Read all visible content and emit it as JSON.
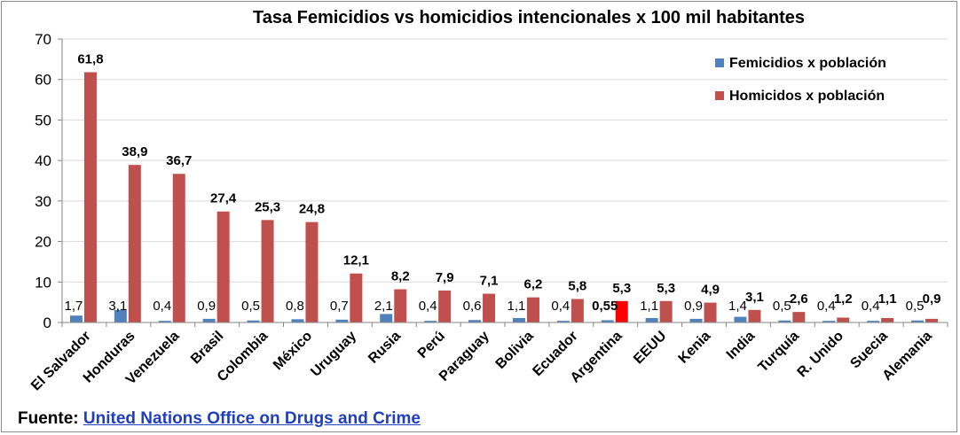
{
  "chart_data": {
    "type": "bar",
    "title": "Tasa Femicidios vs homicidios intencionales x 100 mil habitantes",
    "categories": [
      "El Salvador",
      "Honduras",
      "Venezuela",
      "Brasil",
      "Colombia",
      "México",
      "Uruguay",
      "Rusia",
      "Perú",
      "Paraguay",
      "Bolivia",
      "Ecuador",
      "Argentina",
      "EEUU",
      "Kenia",
      "India",
      "Turquía",
      "R. Unido",
      "Suecia",
      "Alemania"
    ],
    "series": [
      {
        "name": "Femicidios x población",
        "color": "#4f81bd",
        "values": [
          1.7,
          3.1,
          0.4,
          0.9,
          0.5,
          0.8,
          0.7,
          2.1,
          0.4,
          0.6,
          1.1,
          0.4,
          0.55,
          1.1,
          0.9,
          1.4,
          0.5,
          0.4,
          0.4,
          0.5
        ],
        "labels": [
          "1,7",
          "3,1",
          "0,4",
          "0,9",
          "0,5",
          "0,8",
          "0,7",
          "2,1",
          "0,4",
          "0,6",
          "1,1",
          "0,4",
          "0,55",
          "1,1",
          "0,9",
          "1,4",
          "0,5",
          "0,4",
          "0,4",
          "0,5"
        ]
      },
      {
        "name": "Homicidos x población",
        "color": "#c0504d",
        "values": [
          61.8,
          38.9,
          36.7,
          27.4,
          25.3,
          24.8,
          12.1,
          8.2,
          7.9,
          7.1,
          6.2,
          5.8,
          5.3,
          5.3,
          4.9,
          3.1,
          2.6,
          1.2,
          1.1,
          0.9
        ],
        "labels": [
          "61,8",
          "38,9",
          "36,7",
          "27,4",
          "25,3",
          "24,8",
          "12,1",
          "8,2",
          "7,9",
          "7,1",
          "6,2",
          "5,8",
          "5,3",
          "5,3",
          "4,9",
          "3,1",
          "2,6",
          "1,2",
          "1,1",
          "0,9"
        ]
      }
    ],
    "highlight": {
      "category": "Argentina",
      "series": "Homicidos x población",
      "color": "#ff0000"
    },
    "ylim": [
      0,
      70
    ],
    "yticks": [
      "0",
      "10",
      "20",
      "30",
      "40",
      "50",
      "60",
      "70"
    ],
    "ytick_values": [
      0,
      10,
      20,
      30,
      40,
      50,
      60,
      70
    ],
    "grid": true,
    "legend_position": "top-right"
  },
  "source": {
    "prefix": "Fuente:",
    "link_text": "United Nations Office on Drugs and Crime"
  }
}
